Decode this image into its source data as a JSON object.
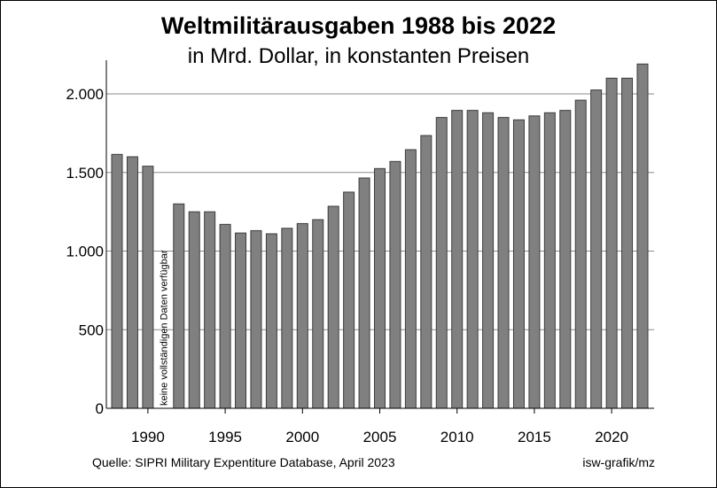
{
  "chart_data": {
    "type": "bar",
    "title": "Weltmilitärausgaben 1988 bis 2022",
    "subtitle": "in Mrd. Dollar, in konstanten Preisen",
    "categories": [
      1988,
      1989,
      1990,
      1991,
      1992,
      1993,
      1994,
      1995,
      1996,
      1997,
      1998,
      1999,
      2000,
      2001,
      2002,
      2003,
      2004,
      2005,
      2006,
      2007,
      2008,
      2009,
      2010,
      2011,
      2012,
      2013,
      2014,
      2015,
      2016,
      2017,
      2018,
      2019,
      2020,
      2021,
      2022
    ],
    "values": [
      1615,
      1600,
      1540,
      null,
      1300,
      1250,
      1250,
      1170,
      1115,
      1130,
      1110,
      1145,
      1175,
      1200,
      1285,
      1375,
      1465,
      1525,
      1570,
      1645,
      1735,
      1850,
      1895,
      1895,
      1880,
      1850,
      1835,
      1860,
      1880,
      1895,
      1960,
      2025,
      2100,
      2100,
      2190
    ],
    "xticks": [
      1990,
      1995,
      2000,
      2005,
      2010,
      2015,
      2020
    ],
    "yticks": [
      0,
      500,
      1000,
      1500,
      2000
    ],
    "ytick_labels": [
      "0",
      "500",
      "1.000",
      "1.500",
      "2.000"
    ],
    "ylim": [
      0,
      2300
    ],
    "xlabel": "",
    "ylabel": "",
    "grid": true,
    "annotation": "keine vollständigen Daten verfügbar",
    "annotation_year": 1991,
    "bar_color": "#808080",
    "bar_edge_color": "#3c3c3c"
  },
  "footer": {
    "source": "Quelle: SIPRI Military Expentiture Database, April 2023",
    "credit": "isw-grafik/mz"
  }
}
